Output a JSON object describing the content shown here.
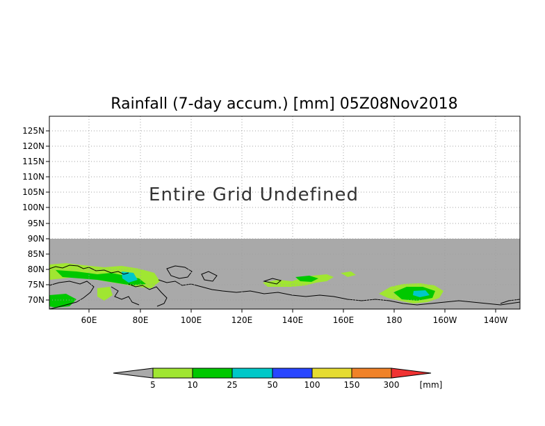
{
  "title": "Rainfall (7-day accum.) [mm] 05Z08Nov2018",
  "message": "Entire Grid Undefined",
  "lat_labels": [
    "125N",
    "120N",
    "115N",
    "110N",
    "105N",
    "100N",
    "95N",
    "90N",
    "85N",
    "80N",
    "75N",
    "70N"
  ],
  "lon_labels": [
    "60E",
    "80E",
    "100E",
    "120E",
    "140E",
    "160E",
    "180",
    "160W",
    "140W"
  ],
  "colorbar": {
    "unit": "[mm]",
    "levels": [
      "5",
      "10",
      "25",
      "50",
      "100",
      "150",
      "300"
    ],
    "colors": [
      "#a0e632",
      "#00c800",
      "#00c8c8",
      "#2846ff",
      "#e6dc32",
      "#f08228",
      "#f03232"
    ],
    "under_color": "#a9a9a9"
  },
  "colors": {
    "land_gray": "#a9a9a9",
    "grid": "#a0a0a0"
  }
}
